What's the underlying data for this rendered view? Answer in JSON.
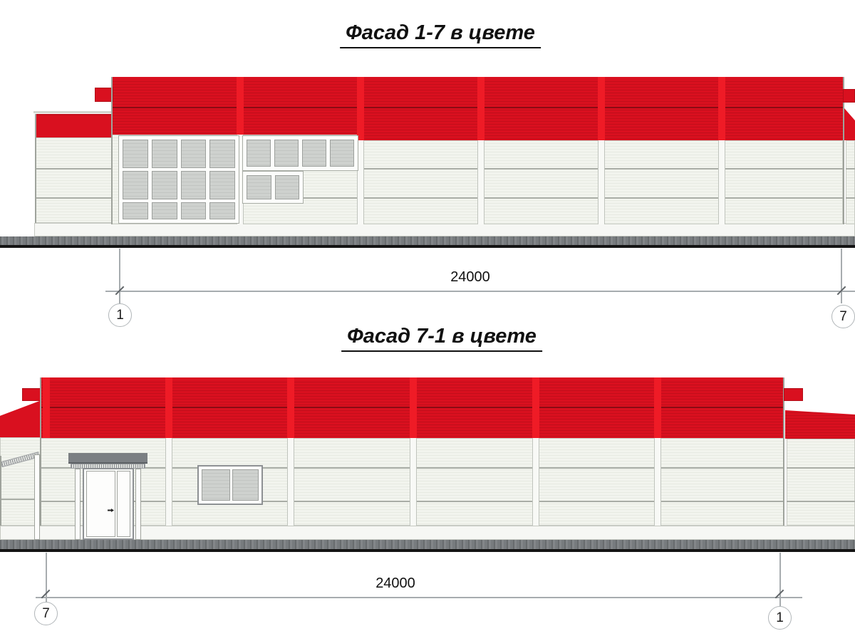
{
  "sheet": {
    "background": "#ffffff"
  },
  "facade_top": {
    "title": "Фасад 1-7 в цвете",
    "dimension_label": "24000",
    "axis_left": "1",
    "axis_right": "7"
  },
  "facade_bottom": {
    "title": "Фасад 7-1 в цвете",
    "dimension_label": "24000",
    "axis_left": "7",
    "axis_right": "1"
  },
  "colors": {
    "red": "#d9101f",
    "red_stripe": "#c20e1b",
    "red_pilaster": "#ef1b26",
    "red_dark_line": "#7f0a12",
    "wall": "#f2f4ee",
    "wall_stripe": "#e7eae2",
    "wall_divider": "#a9ada6",
    "glass": "#ced1ce",
    "glass_stripe": "#c2c5c2",
    "glass_border": "#9da09d",
    "plinth": "#f6f7f4",
    "canopy": "#7b7f83",
    "hatch_dark": "#8b8e91",
    "hatch_light": "#dfe1de",
    "ground": "#7c8083",
    "ground_edge": "#141414",
    "dim_line": "#a7acaf"
  }
}
